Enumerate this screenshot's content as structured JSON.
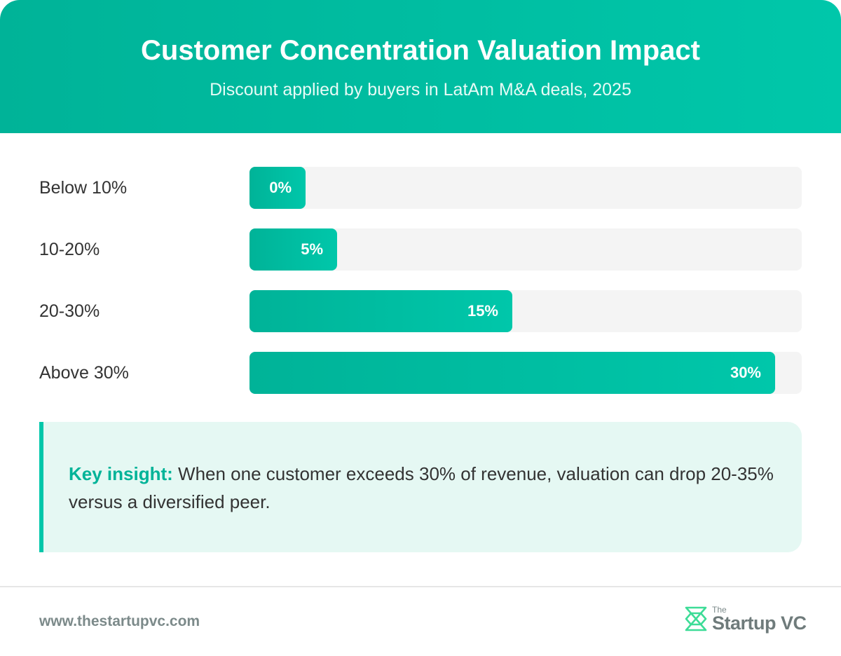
{
  "header": {
    "title": "Customer Concentration Valuation Impact",
    "subtitle": "Discount applied by buyers in LatAm M&A deals, 2025"
  },
  "chart_data": {
    "type": "bar",
    "orientation": "horizontal",
    "title": "Customer Concentration Valuation Impact",
    "subtitle": "Discount applied by buyers in LatAm M&A deals, 2025",
    "categories": [
      "Below 10%",
      "10-20%",
      "20-30%",
      "Above 30%"
    ],
    "values": [
      0,
      5,
      15,
      30
    ],
    "value_labels": [
      "0%",
      "5%",
      "15%",
      "30%"
    ],
    "unit": "%",
    "xlim": [
      0,
      31.5
    ],
    "grid": false,
    "legend": "none"
  },
  "insight": {
    "label": "Key insight:",
    "text": "When one customer exceeds 30% of revenue, valuation can drop 20-35% versus a diversified peer."
  },
  "footer": {
    "url": "www.thestartupvc.com",
    "logo_small": "The",
    "logo_name": "Startup VC"
  },
  "colors": {
    "accent": "#00b398",
    "accent_light": "#00c7aa",
    "track": "#f4f4f4",
    "insight_bg": "#e5f8f3"
  },
  "icons": {
    "logo": "startupvc-logo-icon"
  }
}
